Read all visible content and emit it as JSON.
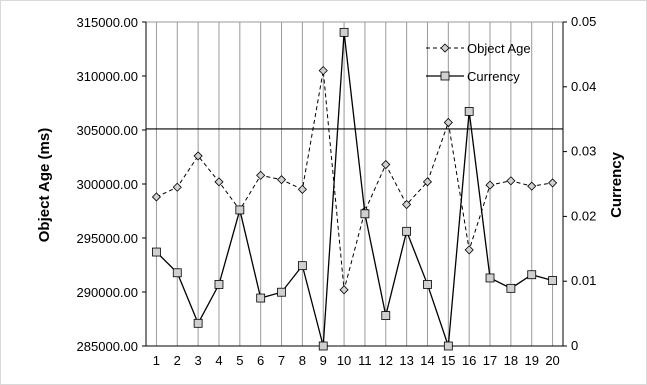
{
  "chart_data": {
    "type": "line",
    "x": [
      1,
      2,
      3,
      4,
      5,
      6,
      7,
      8,
      9,
      10,
      11,
      12,
      13,
      14,
      15,
      16,
      17,
      18,
      19,
      20
    ],
    "series": [
      {
        "name": "Object Age",
        "axis": "left",
        "line_style": "dashed",
        "marker": "diamond",
        "values": [
          298800,
          299700,
          302600,
          300200,
          297600,
          300800,
          300400,
          299500,
          310500,
          290200,
          297500,
          301800,
          298100,
          300200,
          305700,
          293900,
          299900,
          300300,
          299800,
          300100
        ]
      },
      {
        "name": "Currency",
        "axis": "right",
        "line_style": "solid",
        "marker": "square",
        "values": [
          0.0145,
          0.0113,
          0.0035,
          0.0095,
          0.021,
          0.0074,
          0.0083,
          0.0124,
          0.0,
          0.0484,
          0.0204,
          0.0047,
          0.0177,
          0.0095,
          0.0,
          0.0362,
          0.0105,
          0.0089,
          0.011,
          0.0101
        ]
      }
    ],
    "left_axis": {
      "label": "Object Age (ms)",
      "ylim": [
        285000,
        315000
      ],
      "ticks": [
        "285000.00",
        "290000.00",
        "295000.00",
        "300000.00",
        "305000.00",
        "310000.00",
        "315000.00"
      ]
    },
    "right_axis": {
      "label": "Currency",
      "ylim": [
        0,
        0.05
      ],
      "ticks": [
        "0",
        "0.01",
        "0.02",
        "0.03",
        "0.04",
        "0.05"
      ]
    },
    "x_ticks": [
      "1",
      "2",
      "3",
      "4",
      "5",
      "6",
      "7",
      "8",
      "9",
      "10",
      "11",
      "12",
      "13",
      "14",
      "15",
      "16",
      "17",
      "18",
      "19",
      "20"
    ],
    "reference_line": 305100,
    "grid": "vertical",
    "legend_position": "top-right"
  }
}
